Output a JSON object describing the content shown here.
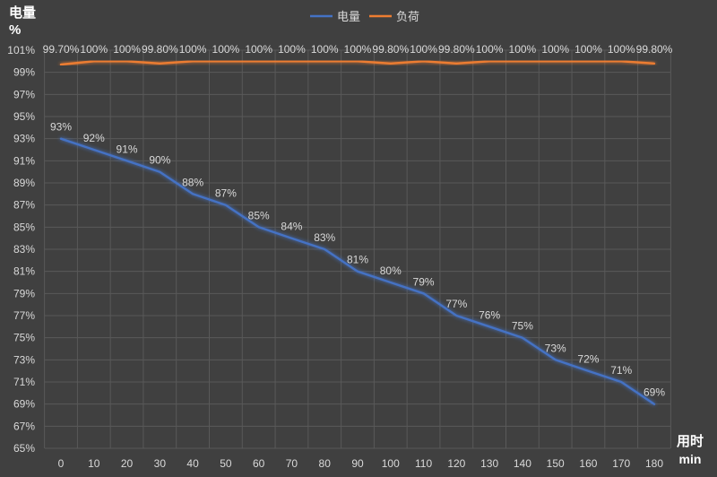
{
  "chart_data": {
    "type": "line",
    "ylabel_line1": "电量",
    "ylabel_line2": "%",
    "xlabel_line1": "用时",
    "xlabel_line2": "min",
    "legend_position": "top-center",
    "grid": true,
    "ylim": [
      65,
      101
    ],
    "yticks": [
      65,
      67,
      69,
      71,
      73,
      75,
      77,
      79,
      81,
      83,
      85,
      87,
      89,
      91,
      93,
      95,
      97,
      99,
      101
    ],
    "ytick_labels": [
      "65%",
      "67%",
      "69%",
      "71%",
      "73%",
      "75%",
      "77%",
      "79%",
      "81%",
      "83%",
      "85%",
      "87%",
      "89%",
      "91%",
      "93%",
      "95%",
      "97%",
      "99%",
      "101%"
    ],
    "x": [
      0,
      10,
      20,
      30,
      40,
      50,
      60,
      70,
      80,
      90,
      100,
      110,
      120,
      130,
      140,
      150,
      160,
      170,
      180
    ],
    "x_labels": [
      "0",
      "10",
      "20",
      "30",
      "40",
      "50",
      "60",
      "70",
      "80",
      "90",
      "100",
      "110",
      "120",
      "130",
      "140",
      "150",
      "160",
      "170",
      "180"
    ],
    "series": [
      {
        "name": "电量",
        "color": "#4472C4",
        "values": [
          93,
          92,
          91,
          90,
          88,
          87,
          85,
          84,
          83,
          81,
          80,
          79,
          77,
          76,
          75,
          73,
          72,
          71,
          69
        ],
        "labels": [
          "93%",
          "92%",
          "91%",
          "90%",
          "88%",
          "87%",
          "85%",
          "84%",
          "83%",
          "81%",
          "80%",
          "79%",
          "77%",
          "76%",
          "75%",
          "73%",
          "72%",
          "71%",
          "69%"
        ]
      },
      {
        "name": "负荷",
        "color": "#ED7D31",
        "values": [
          99.7,
          100,
          100,
          99.8,
          100,
          100,
          100,
          100,
          100,
          100,
          99.8,
          100,
          99.8,
          100,
          100,
          100,
          100,
          100,
          99.8
        ],
        "labels": [
          "99.70%",
          "100%",
          "100%",
          "99.80%",
          "100%",
          "100%",
          "100%",
          "100%",
          "100%",
          "100%",
          "99.80%",
          "100%",
          "99.80%",
          "100%",
          "100%",
          "100%",
          "100%",
          "100%",
          "99.80%"
        ]
      }
    ]
  }
}
